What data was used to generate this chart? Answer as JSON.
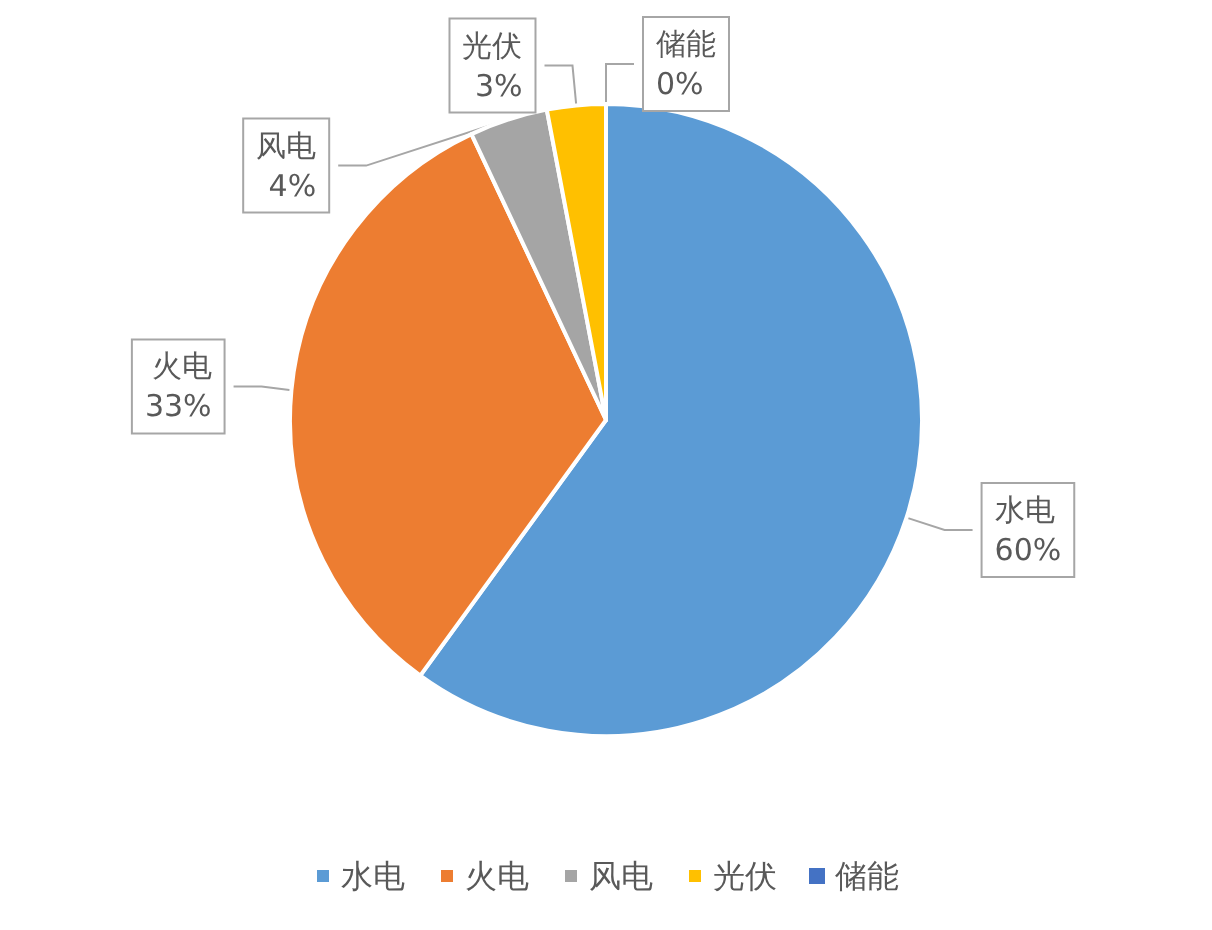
{
  "chart_data": {
    "type": "pie",
    "categories": [
      "水电",
      "火电",
      "风电",
      "光伏",
      "储能"
    ],
    "values": [
      60,
      33,
      4,
      3,
      0
    ],
    "value_labels": [
      "60%",
      "33%",
      "4%",
      "3%",
      "0%"
    ],
    "colors": [
      "#5b9bd5",
      "#ed7d31",
      "#a5a5a5",
      "#ffc000",
      "#4472c4"
    ],
    "legend": "bottom"
  }
}
